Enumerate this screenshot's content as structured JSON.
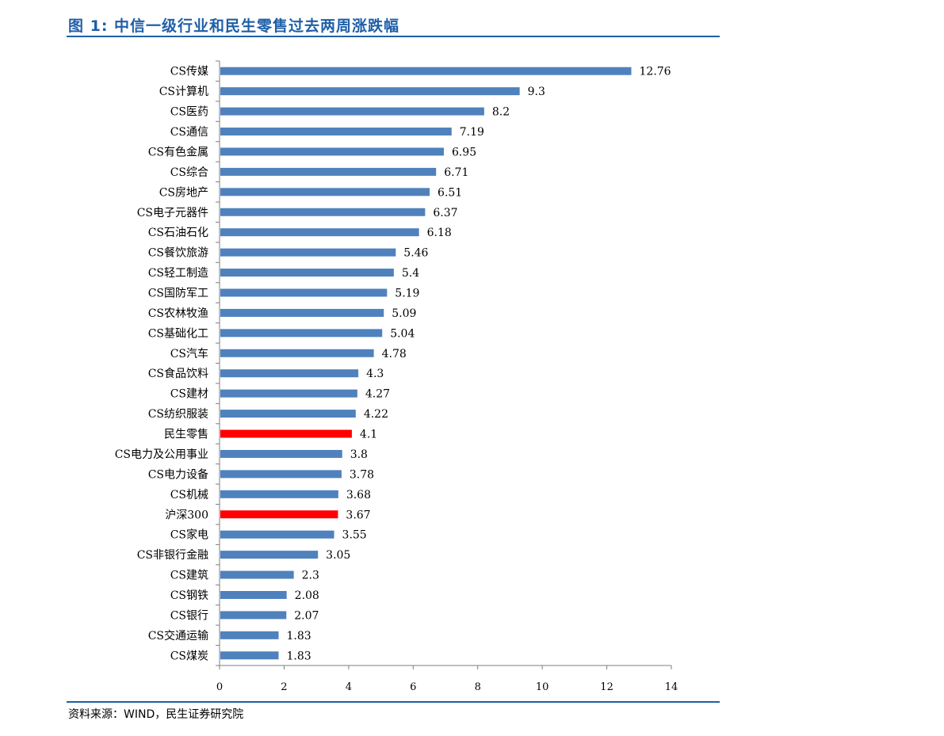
{
  "figure": {
    "title": "图 1:  中信一级行业和民生零售过去两周涨跌幅",
    "source": "资料来源：WIND，民生证券研究院"
  },
  "colors": {
    "default_bar": "#4f81bd",
    "highlight_bar": "#ff0000",
    "axis": "#7f7f7f",
    "title": "#1f5fa8"
  },
  "chart_data": {
    "type": "bar",
    "orientation": "horizontal",
    "title": "",
    "xlabel": "",
    "ylabel": "",
    "xlim": [
      0,
      14
    ],
    "xticks": [
      0,
      2,
      4,
      6,
      8,
      10,
      12,
      14
    ],
    "grid": false,
    "legend": "none",
    "categories": [
      "CS传媒",
      "CS计算机",
      "CS医药",
      "CS通信",
      "CS有色金属",
      "CS综合",
      "CS房地产",
      "CS电子元器件",
      "CS石油石化",
      "CS餐饮旅游",
      "CS轻工制造",
      "CS国防军工",
      "CS农林牧渔",
      "CS基础化工",
      "CS汽车",
      "CS食品饮料",
      "CS建材",
      "CS纺织服装",
      "民生零售",
      "CS电力及公用事业",
      "CS电力设备",
      "CS机械",
      "沪深300",
      "CS家电",
      "CS非银行金融",
      "CS建筑",
      "CS钢铁",
      "CS银行",
      "CS交通运输",
      "CS煤炭"
    ],
    "values": [
      12.76,
      9.3,
      8.2,
      7.19,
      6.95,
      6.71,
      6.51,
      6.37,
      6.18,
      5.46,
      5.4,
      5.19,
      5.09,
      5.04,
      4.78,
      4.3,
      4.27,
      4.22,
      4.1,
      3.8,
      3.78,
      3.68,
      3.67,
      3.55,
      3.05,
      2.3,
      2.08,
      2.07,
      1.83,
      1.83
    ],
    "value_labels": [
      "12.76",
      "9.3",
      "8.2",
      "7.19",
      "6.95",
      "6.71",
      "6.51",
      "6.37",
      "6.18",
      "5.46",
      "5.4",
      "5.19",
      "5.09",
      "5.04",
      "4.78",
      "4.3",
      "4.27",
      "4.22",
      "4.1",
      "3.8",
      "3.78",
      "3.68",
      "3.67",
      "3.55",
      "3.05",
      "2.3",
      "2.08",
      "2.07",
      "1.83",
      "1.83"
    ],
    "highlighted": [
      "民生零售",
      "沪深300"
    ]
  }
}
